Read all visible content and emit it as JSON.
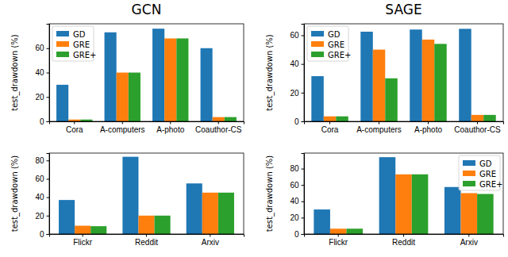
{
  "chart_data": [
    {
      "type": "bar",
      "title": "GCN",
      "y_label": "test_drawdown (%)",
      "categories": [
        "Cora",
        "A-computers",
        "A-photo",
        "Coauthor-CS"
      ],
      "series": [
        {
          "name": "GD",
          "color": "#1f77b4",
          "values": [
            30,
            73,
            76,
            60
          ]
        },
        {
          "name": "GRE",
          "color": "#ff7f0e",
          "values": [
            1.5,
            40,
            68,
            3.5
          ]
        },
        {
          "name": "GRE+",
          "color": "#2ca02c",
          "values": [
            1.5,
            40,
            68,
            3.5
          ]
        }
      ],
      "ylim": [
        0,
        80
      ],
      "yticks": [
        0,
        20,
        40,
        60
      ],
      "legend": "upper left"
    },
    {
      "type": "bar",
      "title": "SAGE",
      "y_label": "test_drawdown (%)",
      "categories": [
        "Cora",
        "A-computers",
        "A-photo",
        "Coauthor-CS"
      ],
      "series": [
        {
          "name": "GD",
          "color": "#1f77b4",
          "values": [
            31.5,
            62.5,
            64,
            64.5
          ]
        },
        {
          "name": "GRE",
          "color": "#ff7f0e",
          "values": [
            3.5,
            50,
            57,
            4.5
          ]
        },
        {
          "name": "GRE+",
          "color": "#2ca02c",
          "values": [
            3.5,
            30,
            54,
            4.5
          ]
        }
      ],
      "ylim": [
        0,
        68
      ],
      "yticks": [
        0,
        20,
        40,
        60
      ],
      "legend": "upper left"
    },
    {
      "type": "bar",
      "y_label": "test_drawdown (%)",
      "categories": [
        "Flickr",
        "Reddit",
        "Arxiv"
      ],
      "series": [
        {
          "name": "GD",
          "color": "#1f77b4",
          "values": [
            37,
            84,
            55
          ]
        },
        {
          "name": "GRE",
          "color": "#ff7f0e",
          "values": [
            9,
            20,
            45
          ]
        },
        {
          "name": "GRE+",
          "color": "#2ca02c",
          "values": [
            8.5,
            20,
            45
          ]
        }
      ],
      "ylim": [
        0,
        88
      ],
      "yticks": [
        0,
        20,
        40,
        60,
        80
      ]
    },
    {
      "type": "bar",
      "y_label": "test_drawdown (%)",
      "categories": [
        "Flickr",
        "Reddit",
        "Arxiv"
      ],
      "series": [
        {
          "name": "GD",
          "color": "#1f77b4",
          "values": [
            30,
            94,
            57.5
          ]
        },
        {
          "name": "GRE",
          "color": "#ff7f0e",
          "values": [
            6.5,
            73,
            50
          ]
        },
        {
          "name": "GRE+",
          "color": "#2ca02c",
          "values": [
            6.5,
            73,
            49
          ]
        }
      ],
      "ylim": [
        0,
        99
      ],
      "yticks": [
        0,
        20,
        40,
        60,
        80
      ],
      "legend": "upper right"
    }
  ]
}
